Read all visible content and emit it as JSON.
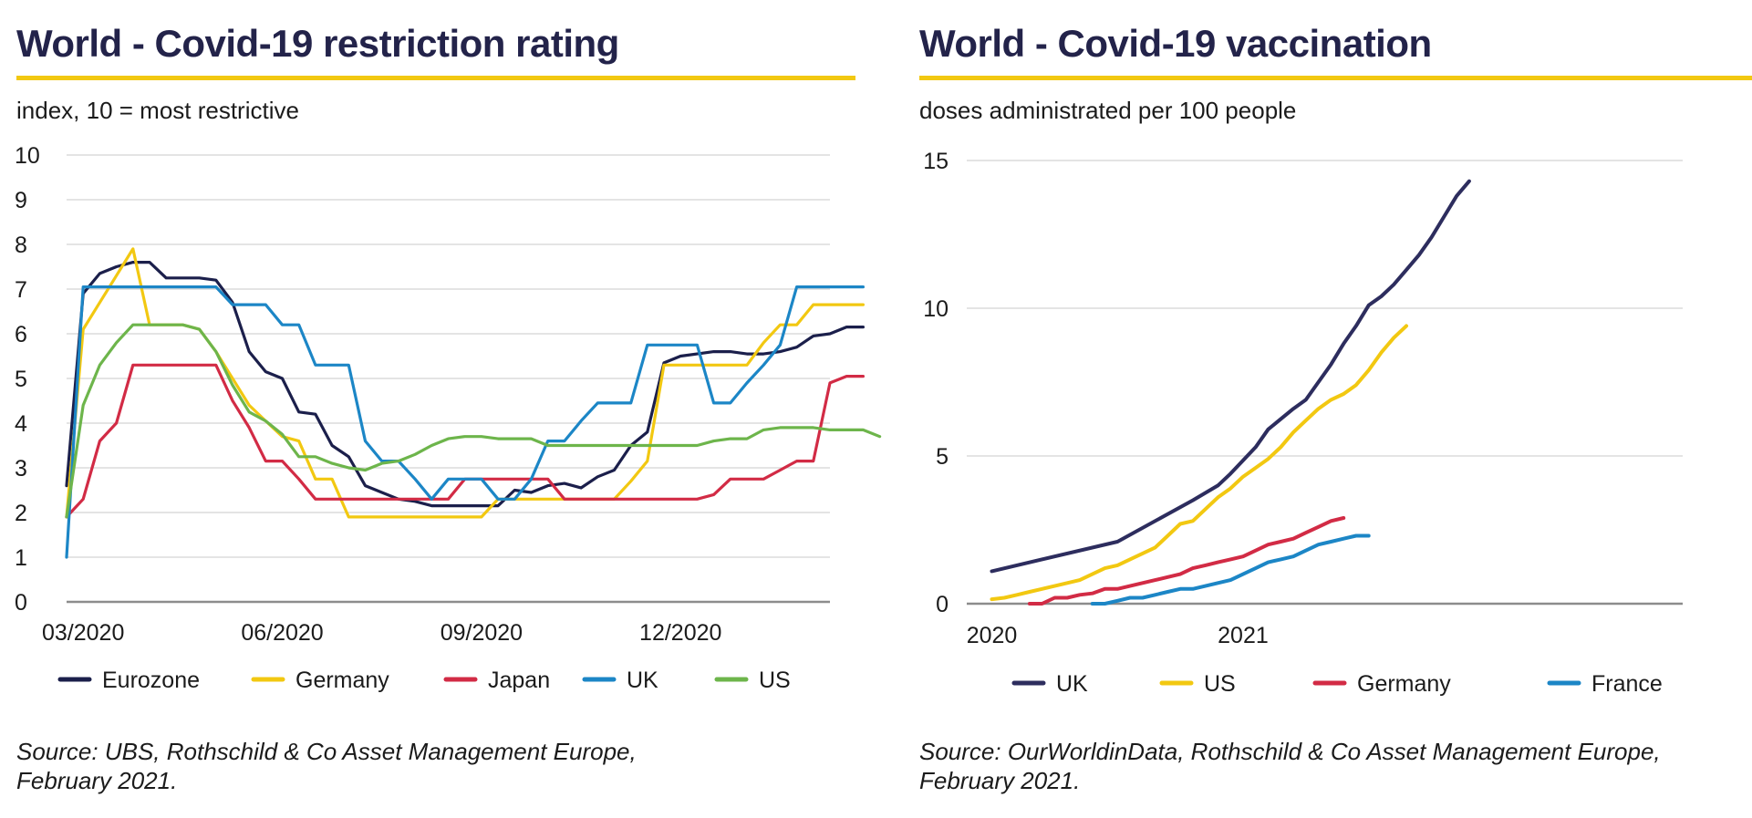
{
  "left": {
    "title": "World - Covid-19 restriction rating",
    "subtitle": "index, 10 = most restrictive",
    "source_line1": "Source: UBS, Rothschild & Co Asset Management Europe,",
    "source_line2": "February 2021."
  },
  "right": {
    "title": "World - Covid-19 vaccination",
    "subtitle": "doses administrated per 100 people",
    "source_line1": "Source: OurWorldinData, Rothschild & Co Asset Management Europe,",
    "source_line2": "February 2021."
  },
  "colors": {
    "title": "#23234a",
    "accent_rule": "#f2c811",
    "grid": "#d4d4d4",
    "axis": "#8c8c8c"
  },
  "chart_data": [
    {
      "type": "line",
      "title": "World - Covid-19 restriction rating",
      "subtitle": "index, 10 = most restrictive",
      "x_unit": "week",
      "x_start": "03/2020",
      "xlim": [
        0,
        46
      ],
      "x_ticks": [
        {
          "label": "03/2020",
          "x": 1
        },
        {
          "label": "06/2020",
          "x": 13
        },
        {
          "label": "09/2020",
          "x": 25
        },
        {
          "label": "12/2020",
          "x": 37
        }
      ],
      "ylim": [
        0,
        10
      ],
      "y_ticks": [
        0,
        1,
        2,
        3,
        4,
        5,
        6,
        7,
        8,
        9,
        10
      ],
      "grid": true,
      "legend_position": "bottom",
      "series": [
        {
          "name": "Eurozone",
          "color": "#1b1f4b",
          "values": [
            2.6,
            6.9,
            7.35,
            7.5,
            7.6,
            7.6,
            7.25,
            7.25,
            7.25,
            7.2,
            6.7,
            5.6,
            5.15,
            5.0,
            4.25,
            4.2,
            3.5,
            3.25,
            2.6,
            2.45,
            2.3,
            2.25,
            2.15,
            2.15,
            2.15,
            2.15,
            2.15,
            2.5,
            2.45,
            2.6,
            2.65,
            2.55,
            2.8,
            2.95,
            3.5,
            3.8,
            5.35,
            5.5,
            5.55,
            5.6,
            5.6,
            5.55,
            5.55,
            5.6,
            5.7,
            5.95,
            6.0,
            6.15,
            6.15
          ]
        },
        {
          "name": "Germany",
          "color": "#f2c811",
          "values": [
            1.9,
            6.1,
            6.7,
            7.3,
            7.9,
            6.2,
            6.2,
            6.2,
            6.1,
            5.6,
            5.0,
            4.4,
            4.05,
            3.7,
            3.6,
            2.75,
            2.75,
            1.9,
            1.9,
            1.9,
            1.9,
            1.9,
            1.9,
            1.9,
            1.9,
            1.9,
            2.3,
            2.3,
            2.3,
            2.3,
            2.3,
            2.3,
            2.3,
            2.3,
            2.7,
            3.15,
            5.3,
            5.3,
            5.3,
            5.3,
            5.3,
            5.3,
            5.8,
            6.2,
            6.2,
            6.65,
            6.65,
            6.65,
            6.65
          ]
        },
        {
          "name": "Japan",
          "color": "#d22b45",
          "values": [
            1.9,
            2.3,
            3.6,
            4.0,
            5.3,
            5.3,
            5.3,
            5.3,
            5.3,
            5.3,
            4.5,
            3.9,
            3.15,
            3.15,
            2.75,
            2.3,
            2.3,
            2.3,
            2.3,
            2.3,
            2.3,
            2.3,
            2.3,
            2.3,
            2.75,
            2.75,
            2.75,
            2.75,
            2.75,
            2.75,
            2.3,
            2.3,
            2.3,
            2.3,
            2.3,
            2.3,
            2.3,
            2.3,
            2.3,
            2.4,
            2.75,
            2.75,
            2.75,
            2.95,
            3.15,
            3.15,
            4.9,
            5.05,
            5.05
          ]
        },
        {
          "name": "UK",
          "color": "#1c86c6",
          "values": [
            1.0,
            7.05,
            7.05,
            7.05,
            7.05,
            7.05,
            7.05,
            7.05,
            7.05,
            7.05,
            6.65,
            6.65,
            6.65,
            6.2,
            6.2,
            5.3,
            5.3,
            5.3,
            3.6,
            3.15,
            3.15,
            2.75,
            2.3,
            2.75,
            2.75,
            2.75,
            2.3,
            2.3,
            2.75,
            3.6,
            3.6,
            4.05,
            4.45,
            4.45,
            4.45,
            5.75,
            5.75,
            5.75,
            5.75,
            4.45,
            4.45,
            4.9,
            5.3,
            5.75,
            7.05,
            7.05,
            7.05,
            7.05,
            7.05
          ]
        },
        {
          "name": "US",
          "color": "#6db54b",
          "values": [
            1.9,
            4.4,
            5.3,
            5.8,
            6.2,
            6.2,
            6.2,
            6.2,
            6.1,
            5.6,
            4.85,
            4.25,
            4.05,
            3.75,
            3.25,
            3.25,
            3.1,
            3.0,
            2.95,
            3.1,
            3.15,
            3.3,
            3.5,
            3.65,
            3.7,
            3.7,
            3.65,
            3.65,
            3.65,
            3.5,
            3.5,
            3.5,
            3.5,
            3.5,
            3.5,
            3.5,
            3.5,
            3.5,
            3.5,
            3.6,
            3.65,
            3.65,
            3.85,
            3.9,
            3.9,
            3.9,
            3.85,
            3.85,
            3.85,
            3.7
          ]
        }
      ]
    },
    {
      "type": "line",
      "title": "World - Covid-19 vaccination",
      "subtitle": "doses administrated per 100 people",
      "xlim": [
        "2020-12-10",
        "2021-02-05"
      ],
      "x_ticks": [
        {
          "label": "2020",
          "x": "2020-12-12"
        },
        {
          "label": "2021",
          "x": "2021-01-01"
        }
      ],
      "ylim": [
        0,
        15
      ],
      "y_ticks": [
        0,
        5,
        10,
        15
      ],
      "grid": true,
      "legend_position": "bottom",
      "series": [
        {
          "name": "UK",
          "color": "#2d2d5e",
          "points": [
            [
              "2020-12-12",
              1.1
            ],
            [
              "2020-12-22",
              2.1
            ],
            [
              "2020-12-28",
              3.5
            ],
            [
              "2020-12-30",
              4.0
            ],
            [
              "2020-12-31",
              4.4
            ],
            [
              "2021-01-02",
              5.3
            ],
            [
              "2021-01-03",
              5.9
            ],
            [
              "2021-01-05",
              6.6
            ],
            [
              "2021-01-06",
              6.9
            ],
            [
              "2021-01-07",
              7.5
            ],
            [
              "2021-01-08",
              8.1
            ],
            [
              "2021-01-09",
              8.8
            ],
            [
              "2021-01-10",
              9.4
            ],
            [
              "2021-01-11",
              10.1
            ],
            [
              "2021-01-12",
              10.4
            ],
            [
              "2021-01-13",
              10.8
            ],
            [
              "2021-01-14",
              11.3
            ],
            [
              "2021-01-15",
              11.8
            ],
            [
              "2021-01-16",
              12.4
            ],
            [
              "2021-01-17",
              13.1
            ],
            [
              "2021-01-18",
              13.8
            ],
            [
              "2021-01-19",
              14.3
            ]
          ]
        },
        {
          "name": "US",
          "color": "#f2c811",
          "points": [
            [
              "2020-12-12",
              0.15
            ],
            [
              "2020-12-13",
              0.2
            ],
            [
              "2020-12-14",
              0.3
            ],
            [
              "2020-12-15",
              0.4
            ],
            [
              "2020-12-16",
              0.5
            ],
            [
              "2020-12-17",
              0.6
            ],
            [
              "2020-12-18",
              0.7
            ],
            [
              "2020-12-19",
              0.8
            ],
            [
              "2020-12-20",
              1.0
            ],
            [
              "2020-12-21",
              1.2
            ],
            [
              "2020-12-22",
              1.3
            ],
            [
              "2020-12-23",
              1.5
            ],
            [
              "2020-12-24",
              1.7
            ],
            [
              "2020-12-25",
              1.9
            ],
            [
              "2020-12-26",
              2.3
            ],
            [
              "2020-12-27",
              2.7
            ],
            [
              "2020-12-28",
              2.8
            ],
            [
              "2020-12-29",
              3.2
            ],
            [
              "2020-12-30",
              3.6
            ],
            [
              "2020-12-31",
              3.9
            ],
            [
              "2021-01-01",
              4.3
            ],
            [
              "2021-01-02",
              4.6
            ],
            [
              "2021-01-03",
              4.9
            ],
            [
              "2021-01-04",
              5.3
            ],
            [
              "2021-01-05",
              5.8
            ],
            [
              "2021-01-06",
              6.2
            ],
            [
              "2021-01-07",
              6.6
            ],
            [
              "2021-01-08",
              6.9
            ],
            [
              "2021-01-09",
              7.1
            ],
            [
              "2021-01-10",
              7.4
            ],
            [
              "2021-01-11",
              7.9
            ],
            [
              "2021-01-12",
              8.5
            ],
            [
              "2021-01-13",
              9.0
            ],
            [
              "2021-01-14",
              9.4
            ]
          ]
        },
        {
          "name": "Germany",
          "color": "#d22b45",
          "points": [
            [
              "2020-12-15",
              0.0
            ],
            [
              "2020-12-16",
              0.0
            ],
            [
              "2020-12-17",
              0.2
            ],
            [
              "2020-12-18",
              0.2
            ],
            [
              "2020-12-19",
              0.3
            ],
            [
              "2020-12-20",
              0.35
            ],
            [
              "2020-12-21",
              0.5
            ],
            [
              "2020-12-22",
              0.5
            ],
            [
              "2020-12-23",
              0.6
            ],
            [
              "2020-12-24",
              0.7
            ],
            [
              "2020-12-25",
              0.8
            ],
            [
              "2020-12-26",
              0.9
            ],
            [
              "2020-12-27",
              1.0
            ],
            [
              "2020-12-28",
              1.2
            ],
            [
              "2020-12-29",
              1.3
            ],
            [
              "2020-12-30",
              1.4
            ],
            [
              "2020-12-31",
              1.5
            ],
            [
              "2021-01-01",
              1.6
            ],
            [
              "2021-01-02",
              1.8
            ],
            [
              "2021-01-03",
              2.0
            ],
            [
              "2021-01-04",
              2.1
            ],
            [
              "2021-01-05",
              2.2
            ],
            [
              "2021-01-06",
              2.4
            ],
            [
              "2021-01-07",
              2.6
            ],
            [
              "2021-01-08",
              2.8
            ],
            [
              "2021-01-09",
              2.9
            ]
          ]
        },
        {
          "name": "France",
          "color": "#1c86c6",
          "points": [
            [
              "2020-12-20",
              0.0
            ],
            [
              "2020-12-21",
              0.0
            ],
            [
              "2020-12-22",
              0.1
            ],
            [
              "2020-12-23",
              0.2
            ],
            [
              "2020-12-24",
              0.2
            ],
            [
              "2020-12-25",
              0.3
            ],
            [
              "2020-12-26",
              0.4
            ],
            [
              "2020-12-27",
              0.5
            ],
            [
              "2020-12-28",
              0.5
            ],
            [
              "2020-12-29",
              0.6
            ],
            [
              "2020-12-30",
              0.7
            ],
            [
              "2020-12-31",
              0.8
            ],
            [
              "2021-01-01",
              1.0
            ],
            [
              "2021-01-02",
              1.2
            ],
            [
              "2021-01-03",
              1.4
            ],
            [
              "2021-01-04",
              1.5
            ],
            [
              "2021-01-05",
              1.6
            ],
            [
              "2021-01-06",
              1.8
            ],
            [
              "2021-01-07",
              2.0
            ],
            [
              "2021-01-08",
              2.1
            ],
            [
              "2021-01-09",
              2.2
            ],
            [
              "2021-01-10",
              2.3
            ],
            [
              "2021-01-11",
              2.3
            ]
          ]
        }
      ]
    }
  ]
}
